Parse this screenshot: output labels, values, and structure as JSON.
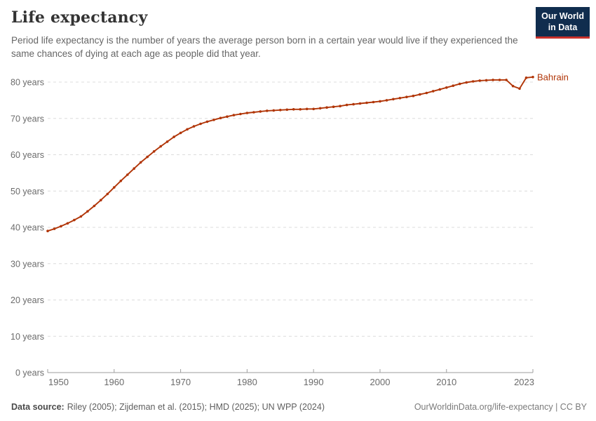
{
  "header": {
    "title": "Life expectancy",
    "subtitle": "Period life expectancy is the number of years the average person born in a certain year would live if they experienced the same chances of dying at each age as people did that year.",
    "logo_line1": "Our World",
    "logo_line2": "in Data"
  },
  "colors": {
    "line": "#b13507",
    "logo_bg": "#102d4e",
    "logo_accent": "#c8312b",
    "grid": "#dcdcdc",
    "axis": "#9e9e9e"
  },
  "chart_data": {
    "type": "line",
    "title": "Life expectancy",
    "entity": "Bahrain",
    "xlabel": "",
    "ylabel": "",
    "ylim": [
      0,
      80
    ],
    "xlim": [
      1950,
      2023
    ],
    "grid": "horizontal-dashed",
    "legend_position": "end-of-line-label",
    "x": [
      1950,
      1951,
      1952,
      1953,
      1954,
      1955,
      1956,
      1957,
      1958,
      1959,
      1960,
      1961,
      1962,
      1963,
      1964,
      1965,
      1966,
      1967,
      1968,
      1969,
      1970,
      1971,
      1972,
      1973,
      1974,
      1975,
      1976,
      1977,
      1978,
      1979,
      1980,
      1981,
      1982,
      1983,
      1984,
      1985,
      1986,
      1987,
      1988,
      1989,
      1990,
      1991,
      1992,
      1993,
      1994,
      1995,
      1996,
      1997,
      1998,
      1999,
      2000,
      2001,
      2002,
      2003,
      2004,
      2005,
      2006,
      2007,
      2008,
      2009,
      2010,
      2011,
      2012,
      2013,
      2014,
      2015,
      2016,
      2017,
      2018,
      2019,
      2020,
      2021,
      2022,
      2023
    ],
    "series": [
      {
        "name": "Bahrain",
        "values": [
          39.0,
          39.6,
          40.3,
          41.1,
          42.0,
          43.0,
          44.4,
          45.9,
          47.5,
          49.2,
          51.0,
          52.8,
          54.5,
          56.2,
          57.9,
          59.4,
          60.9,
          62.3,
          63.6,
          64.9,
          66.0,
          67.0,
          67.8,
          68.5,
          69.1,
          69.6,
          70.1,
          70.5,
          70.9,
          71.2,
          71.5,
          71.7,
          71.9,
          72.1,
          72.2,
          72.3,
          72.4,
          72.5,
          72.5,
          72.6,
          72.6,
          72.8,
          73.0,
          73.2,
          73.4,
          73.7,
          73.9,
          74.1,
          74.3,
          74.5,
          74.7,
          75.0,
          75.3,
          75.6,
          75.9,
          76.2,
          76.6,
          77.0,
          77.5,
          78.0,
          78.5,
          79.0,
          79.5,
          79.9,
          80.2,
          80.4,
          80.5,
          80.6,
          80.6,
          80.6,
          78.9,
          78.2,
          81.2,
          81.4
        ]
      }
    ],
    "y_ticks": [
      {
        "value": 0,
        "label": "0 years"
      },
      {
        "value": 10,
        "label": "10 years"
      },
      {
        "value": 20,
        "label": "20 years"
      },
      {
        "value": 30,
        "label": "30 years"
      },
      {
        "value": 40,
        "label": "40 years"
      },
      {
        "value": 50,
        "label": "50 years"
      },
      {
        "value": 60,
        "label": "60 years"
      },
      {
        "value": 70,
        "label": "70 years"
      },
      {
        "value": 80,
        "label": "80 years"
      }
    ],
    "x_ticks": [
      {
        "value": 1950,
        "label": "1950"
      },
      {
        "value": 1960,
        "label": "1960"
      },
      {
        "value": 1970,
        "label": "1970"
      },
      {
        "value": 1980,
        "label": "1980"
      },
      {
        "value": 1990,
        "label": "1990"
      },
      {
        "value": 2000,
        "label": "2000"
      },
      {
        "value": 2010,
        "label": "2010"
      },
      {
        "value": 2023,
        "label": "2023"
      }
    ]
  },
  "footer": {
    "data_source_label": "Data source:",
    "data_source_text": "Riley (2005); Zijdeman et al. (2015); HMD (2025); UN WPP (2024)",
    "attribution": "OurWorldinData.org/life-expectancy | CC BY"
  }
}
